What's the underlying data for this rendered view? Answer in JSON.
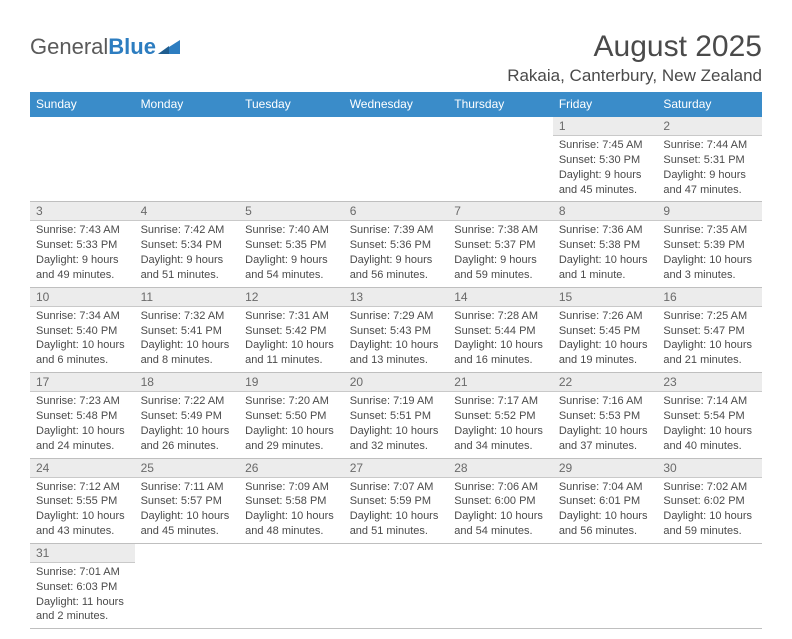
{
  "logo": {
    "part1": "General",
    "part2": "Blue"
  },
  "title": "August 2025",
  "location": "Rakaia, Canterbury, New Zealand",
  "columns": [
    "Sunday",
    "Monday",
    "Tuesday",
    "Wednesday",
    "Thursday",
    "Friday",
    "Saturday"
  ],
  "colors": {
    "header_bg": "#3a8cc9",
    "header_fg": "#ffffff",
    "daynum_bg": "#ececec",
    "row_border": "#3a8cc9",
    "text": "#4a4a4a",
    "logo_blue": "#2d7dc0"
  },
  "fonts": {
    "title_size": 30,
    "location_size": 17,
    "header_size": 12,
    "cell_size": 11
  },
  "weeks": [
    [
      null,
      null,
      null,
      null,
      null,
      {
        "n": "1",
        "sunrise": "Sunrise: 7:45 AM",
        "sunset": "Sunset: 5:30 PM",
        "daylight": "Daylight: 9 hours and 45 minutes."
      },
      {
        "n": "2",
        "sunrise": "Sunrise: 7:44 AM",
        "sunset": "Sunset: 5:31 PM",
        "daylight": "Daylight: 9 hours and 47 minutes."
      }
    ],
    [
      {
        "n": "3",
        "sunrise": "Sunrise: 7:43 AM",
        "sunset": "Sunset: 5:33 PM",
        "daylight": "Daylight: 9 hours and 49 minutes."
      },
      {
        "n": "4",
        "sunrise": "Sunrise: 7:42 AM",
        "sunset": "Sunset: 5:34 PM",
        "daylight": "Daylight: 9 hours and 51 minutes."
      },
      {
        "n": "5",
        "sunrise": "Sunrise: 7:40 AM",
        "sunset": "Sunset: 5:35 PM",
        "daylight": "Daylight: 9 hours and 54 minutes."
      },
      {
        "n": "6",
        "sunrise": "Sunrise: 7:39 AM",
        "sunset": "Sunset: 5:36 PM",
        "daylight": "Daylight: 9 hours and 56 minutes."
      },
      {
        "n": "7",
        "sunrise": "Sunrise: 7:38 AM",
        "sunset": "Sunset: 5:37 PM",
        "daylight": "Daylight: 9 hours and 59 minutes."
      },
      {
        "n": "8",
        "sunrise": "Sunrise: 7:36 AM",
        "sunset": "Sunset: 5:38 PM",
        "daylight": "Daylight: 10 hours and 1 minute."
      },
      {
        "n": "9",
        "sunrise": "Sunrise: 7:35 AM",
        "sunset": "Sunset: 5:39 PM",
        "daylight": "Daylight: 10 hours and 3 minutes."
      }
    ],
    [
      {
        "n": "10",
        "sunrise": "Sunrise: 7:34 AM",
        "sunset": "Sunset: 5:40 PM",
        "daylight": "Daylight: 10 hours and 6 minutes."
      },
      {
        "n": "11",
        "sunrise": "Sunrise: 7:32 AM",
        "sunset": "Sunset: 5:41 PM",
        "daylight": "Daylight: 10 hours and 8 minutes."
      },
      {
        "n": "12",
        "sunrise": "Sunrise: 7:31 AM",
        "sunset": "Sunset: 5:42 PM",
        "daylight": "Daylight: 10 hours and 11 minutes."
      },
      {
        "n": "13",
        "sunrise": "Sunrise: 7:29 AM",
        "sunset": "Sunset: 5:43 PM",
        "daylight": "Daylight: 10 hours and 13 minutes."
      },
      {
        "n": "14",
        "sunrise": "Sunrise: 7:28 AM",
        "sunset": "Sunset: 5:44 PM",
        "daylight": "Daylight: 10 hours and 16 minutes."
      },
      {
        "n": "15",
        "sunrise": "Sunrise: 7:26 AM",
        "sunset": "Sunset: 5:45 PM",
        "daylight": "Daylight: 10 hours and 19 minutes."
      },
      {
        "n": "16",
        "sunrise": "Sunrise: 7:25 AM",
        "sunset": "Sunset: 5:47 PM",
        "daylight": "Daylight: 10 hours and 21 minutes."
      }
    ],
    [
      {
        "n": "17",
        "sunrise": "Sunrise: 7:23 AM",
        "sunset": "Sunset: 5:48 PM",
        "daylight": "Daylight: 10 hours and 24 minutes."
      },
      {
        "n": "18",
        "sunrise": "Sunrise: 7:22 AM",
        "sunset": "Sunset: 5:49 PM",
        "daylight": "Daylight: 10 hours and 26 minutes."
      },
      {
        "n": "19",
        "sunrise": "Sunrise: 7:20 AM",
        "sunset": "Sunset: 5:50 PM",
        "daylight": "Daylight: 10 hours and 29 minutes."
      },
      {
        "n": "20",
        "sunrise": "Sunrise: 7:19 AM",
        "sunset": "Sunset: 5:51 PM",
        "daylight": "Daylight: 10 hours and 32 minutes."
      },
      {
        "n": "21",
        "sunrise": "Sunrise: 7:17 AM",
        "sunset": "Sunset: 5:52 PM",
        "daylight": "Daylight: 10 hours and 34 minutes."
      },
      {
        "n": "22",
        "sunrise": "Sunrise: 7:16 AM",
        "sunset": "Sunset: 5:53 PM",
        "daylight": "Daylight: 10 hours and 37 minutes."
      },
      {
        "n": "23",
        "sunrise": "Sunrise: 7:14 AM",
        "sunset": "Sunset: 5:54 PM",
        "daylight": "Daylight: 10 hours and 40 minutes."
      }
    ],
    [
      {
        "n": "24",
        "sunrise": "Sunrise: 7:12 AM",
        "sunset": "Sunset: 5:55 PM",
        "daylight": "Daylight: 10 hours and 43 minutes."
      },
      {
        "n": "25",
        "sunrise": "Sunrise: 7:11 AM",
        "sunset": "Sunset: 5:57 PM",
        "daylight": "Daylight: 10 hours and 45 minutes."
      },
      {
        "n": "26",
        "sunrise": "Sunrise: 7:09 AM",
        "sunset": "Sunset: 5:58 PM",
        "daylight": "Daylight: 10 hours and 48 minutes."
      },
      {
        "n": "27",
        "sunrise": "Sunrise: 7:07 AM",
        "sunset": "Sunset: 5:59 PM",
        "daylight": "Daylight: 10 hours and 51 minutes."
      },
      {
        "n": "28",
        "sunrise": "Sunrise: 7:06 AM",
        "sunset": "Sunset: 6:00 PM",
        "daylight": "Daylight: 10 hours and 54 minutes."
      },
      {
        "n": "29",
        "sunrise": "Sunrise: 7:04 AM",
        "sunset": "Sunset: 6:01 PM",
        "daylight": "Daylight: 10 hours and 56 minutes."
      },
      {
        "n": "30",
        "sunrise": "Sunrise: 7:02 AM",
        "sunset": "Sunset: 6:02 PM",
        "daylight": "Daylight: 10 hours and 59 minutes."
      }
    ],
    [
      {
        "n": "31",
        "sunrise": "Sunrise: 7:01 AM",
        "sunset": "Sunset: 6:03 PM",
        "daylight": "Daylight: 11 hours and 2 minutes."
      },
      null,
      null,
      null,
      null,
      null,
      null
    ]
  ]
}
